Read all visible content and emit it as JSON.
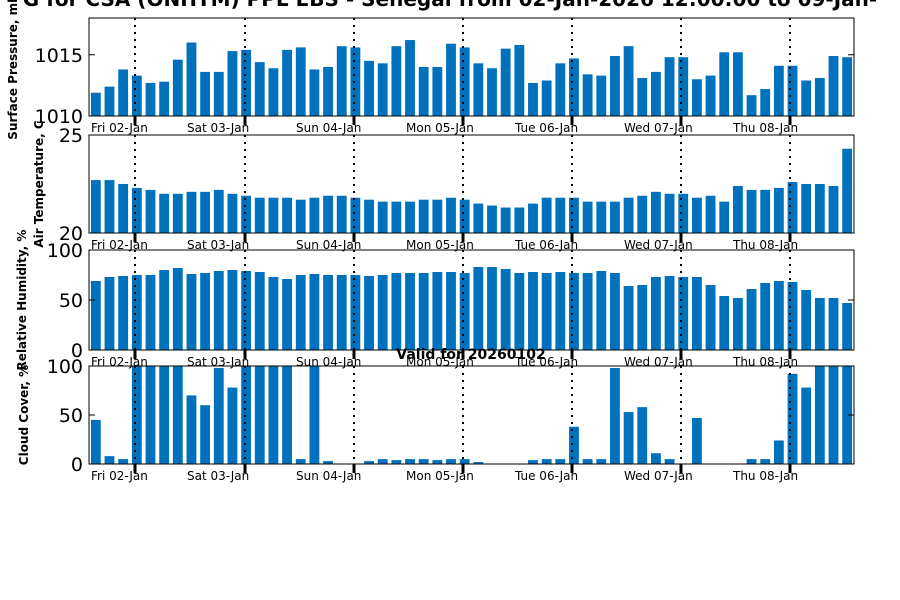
{
  "page": {
    "title": "G for CSA (ONHTM) PPL EBS  - Senegal from 02-Jan-2026 12:00:00 to 09-Jan-"
  },
  "colors": {
    "bar": "#0072bd",
    "axis": "#000000"
  },
  "chart_data": [
    {
      "type": "bar",
      "title": "",
      "xlabel": "",
      "ylabel": "Surface Pressure, mb",
      "ylim": [
        1010,
        1018
      ],
      "yticks": [
        1010,
        1015
      ],
      "day_labels": [
        "Fri 02-Jan",
        "Sat 03-Jan",
        "Sun 04-Jan",
        "Mon 05-Jan",
        "Tue 06-Jan",
        "Wed 07-Jan",
        "Thu 08-Jan"
      ],
      "values": [
        1011.9,
        1012.4,
        1013.8,
        1013.3,
        1012.7,
        1012.8,
        1014.6,
        1016.0,
        1013.6,
        1013.6,
        1015.3,
        1015.4,
        1014.4,
        1013.9,
        1015.4,
        1015.6,
        1013.8,
        1014.0,
        1015.7,
        1015.6,
        1014.5,
        1014.3,
        1015.7,
        1016.2,
        1014.0,
        1014.0,
        1015.9,
        1015.6,
        1014.3,
        1013.9,
        1015.5,
        1015.8,
        1012.7,
        1012.9,
        1014.3,
        1014.7,
        1013.4,
        1013.3,
        1014.9,
        1015.7,
        1013.1,
        1013.6,
        1014.8,
        1014.8,
        1013.0,
        1013.3,
        1015.2,
        1015.2,
        1011.7,
        1012.2,
        1014.1,
        1014.1,
        1012.9,
        1013.1,
        1014.9,
        1014.8
      ]
    },
    {
      "type": "bar",
      "title": "",
      "xlabel": "",
      "ylabel": "Air Temperature, C",
      "ylim": [
        20,
        25
      ],
      "yticks": [
        20,
        25
      ],
      "day_labels": [
        "Fri 02-Jan",
        "Sat 03-Jan",
        "Sun 04-Jan",
        "Mon 05-Jan",
        "Tue 06-Jan",
        "Wed 07-Jan",
        "Thu 08-Jan"
      ],
      "values": [
        22.7,
        22.7,
        22.5,
        22.3,
        22.2,
        22.0,
        22.0,
        22.1,
        22.1,
        22.2,
        22.0,
        21.9,
        21.8,
        21.8,
        21.8,
        21.7,
        21.8,
        21.9,
        21.9,
        21.8,
        21.7,
        21.6,
        21.6,
        21.6,
        21.7,
        21.7,
        21.8,
        21.7,
        21.5,
        21.4,
        21.3,
        21.3,
        21.5,
        21.8,
        21.8,
        21.8,
        21.6,
        21.6,
        21.6,
        21.8,
        21.9,
        22.1,
        22.0,
        22.0,
        21.8,
        21.9,
        21.6,
        22.4,
        22.2,
        22.2,
        22.3,
        22.6,
        22.5,
        22.5,
        22.4,
        24.3
      ]
    },
    {
      "type": "bar",
      "title": "",
      "xlabel": "",
      "ylabel": "Relative Humidity, %",
      "ylim": [
        0,
        100
      ],
      "yticks": [
        0,
        50,
        100
      ],
      "day_labels": [
        "Fri 02-Jan",
        "Sat 03-Jan",
        "Sun 04-Jan",
        "Mon 05-Jan",
        "Tue 06-Jan",
        "Wed 07-Jan",
        "Thu 08-Jan"
      ],
      "values": [
        69,
        73,
        74,
        75,
        75,
        80,
        82,
        76,
        77,
        79,
        80,
        79,
        78,
        73,
        71,
        75,
        76,
        75,
        75,
        75,
        74,
        75,
        77,
        77,
        77,
        78,
        78,
        77,
        83,
        83,
        81,
        77,
        78,
        77,
        78,
        77,
        77,
        79,
        77,
        64,
        65,
        73,
        74,
        73,
        73,
        65,
        54,
        52,
        61,
        67,
        69,
        68,
        60,
        52,
        52,
        47
      ]
    },
    {
      "type": "bar",
      "title": "Valid for 20260102",
      "xlabel": "",
      "ylabel": "Cloud Cover, %",
      "ylim": [
        0,
        100
      ],
      "yticks": [
        0,
        50,
        100
      ],
      "day_labels": [
        "Fri 02-Jan",
        "Sat 03-Jan",
        "Sun 04-Jan",
        "Mon 05-Jan",
        "Tue 06-Jan",
        "Wed 07-Jan",
        "Thu 08-Jan"
      ],
      "values": [
        45,
        8,
        5,
        100,
        100,
        100,
        100,
        70,
        60,
        98,
        78,
        100,
        100,
        100,
        100,
        5,
        100,
        3,
        0,
        0,
        3,
        5,
        4,
        5,
        5,
        4,
        5,
        5,
        2,
        0,
        0,
        0,
        4,
        5,
        5,
        38,
        5,
        5,
        98,
        53,
        58,
        11,
        5,
        0,
        47,
        0,
        0,
        0,
        5,
        5,
        24,
        92,
        78,
        100,
        100,
        100
      ]
    }
  ]
}
